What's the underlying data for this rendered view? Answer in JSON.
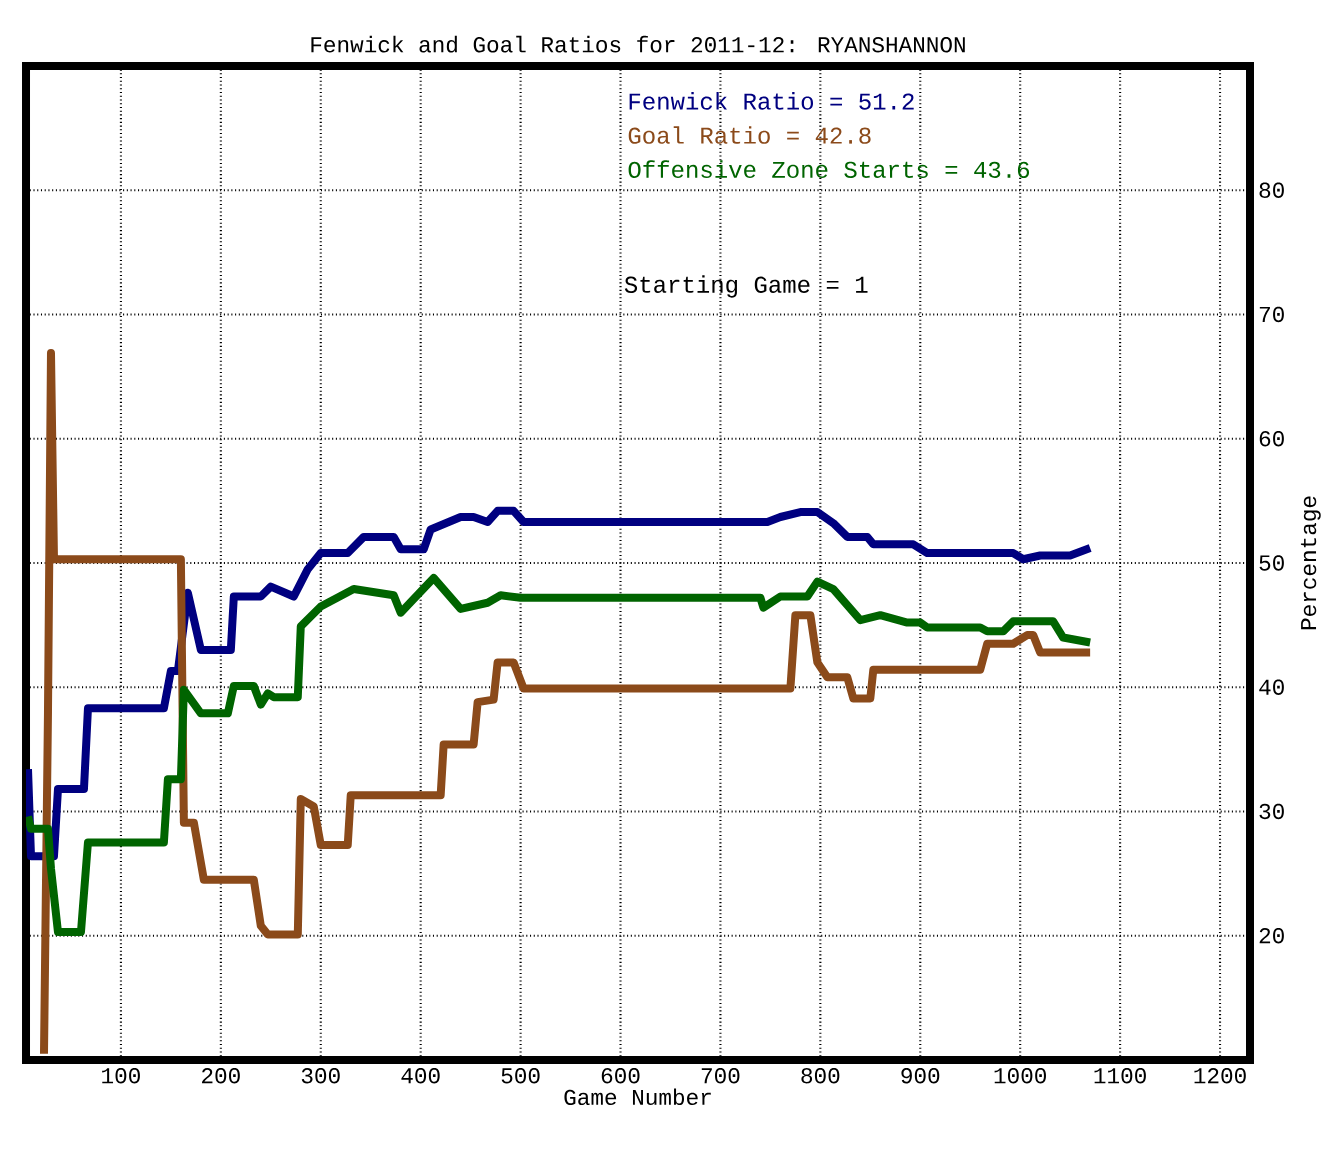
{
  "chart_data": {
    "type": "line",
    "title": "Fenwick and Goal Ratios for 2011-12: RYANSHANNON",
    "xlabel": "Game Number",
    "ylabel": "Percentage",
    "xlim": [
      5,
      1230
    ],
    "ylim": [
      10,
      90
    ],
    "xticks": [
      100,
      200,
      300,
      400,
      500,
      600,
      700,
      800,
      900,
      1000,
      1100,
      1200
    ],
    "yticks": [
      20,
      30,
      40,
      50,
      60,
      70,
      80
    ],
    "grid": true,
    "legend": "top right",
    "line_style": "solid",
    "marker": "none",
    "annotations": [
      "Starting Game = 1"
    ],
    "series": [
      {
        "name": "Fenwick Ratio = 51.2",
        "color": "#000080",
        "x": [
          7,
          10,
          33,
          37,
          63,
          67,
          143,
          150,
          157,
          167,
          180,
          210,
          213,
          240,
          250,
          273,
          287,
          300,
          327,
          343,
          373,
          380,
          403,
          410,
          440,
          453,
          467,
          477,
          493,
          503,
          747,
          760,
          780,
          797,
          813,
          827,
          847,
          853,
          893,
          907,
          993,
          1003,
          1020,
          1050,
          1070
        ],
        "values": [
          33.4,
          26.4,
          26.4,
          31.8,
          31.8,
          38.3,
          38.3,
          41.3,
          41.3,
          47.6,
          43.0,
          43.0,
          47.3,
          47.3,
          48.1,
          47.3,
          49.5,
          50.8,
          50.8,
          52.1,
          52.1,
          51.1,
          51.1,
          52.7,
          53.7,
          53.7,
          53.3,
          54.2,
          54.2,
          53.3,
          53.3,
          53.7,
          54.1,
          54.1,
          53.2,
          52.1,
          52.1,
          51.5,
          51.5,
          50.8,
          50.8,
          50.3,
          50.6,
          50.6,
          51.2
        ]
      },
      {
        "name": "Goal Ratio = 42.8",
        "color": "#8b4a1a",
        "x": [
          23,
          27,
          30,
          33,
          160,
          163,
          173,
          183,
          233,
          240,
          247,
          277,
          280,
          293,
          300,
          327,
          330,
          420,
          423,
          453,
          457,
          473,
          477,
          493,
          503,
          770,
          775,
          790,
          797,
          807,
          827,
          833,
          850,
          853,
          960,
          967,
          993,
          1007,
          1013,
          1020,
          1070
        ],
        "values": [
          10.5,
          38.0,
          66.9,
          50.3,
          50.3,
          29.1,
          29.1,
          24.5,
          24.5,
          20.8,
          20.1,
          20.1,
          31.0,
          30.4,
          27.3,
          27.3,
          31.3,
          31.3,
          35.4,
          35.4,
          38.8,
          39.0,
          42.0,
          42.0,
          39.9,
          39.9,
          45.8,
          45.8,
          42.0,
          40.8,
          40.8,
          39.1,
          39.1,
          41.4,
          41.4,
          43.5,
          43.5,
          44.2,
          44.2,
          42.8,
          42.8
        ]
      },
      {
        "name": "Offensive Zone Starts = 43.6",
        "color": "#006400",
        "x": [
          7,
          10,
          27,
          30,
          37,
          60,
          67,
          143,
          147,
          160,
          163,
          180,
          207,
          213,
          233,
          240,
          247,
          253,
          277,
          280,
          300,
          333,
          373,
          380,
          393,
          413,
          440,
          467,
          480,
          500,
          740,
          743,
          760,
          787,
          797,
          813,
          840,
          860,
          887,
          900,
          907,
          960,
          967,
          983,
          993,
          1033,
          1043,
          1070
        ],
        "values": [
          29.6,
          28.6,
          28.6,
          25.4,
          20.3,
          20.3,
          27.5,
          27.5,
          32.6,
          32.6,
          39.8,
          37.9,
          37.9,
          40.1,
          40.1,
          38.6,
          39.5,
          39.2,
          39.2,
          44.9,
          46.5,
          47.9,
          47.4,
          46.0,
          47.1,
          48.8,
          46.3,
          46.8,
          47.4,
          47.2,
          47.2,
          46.4,
          47.3,
          47.3,
          48.5,
          47.9,
          45.4,
          45.8,
          45.2,
          45.2,
          44.8,
          44.8,
          44.5,
          44.5,
          45.3,
          45.3,
          44.0,
          43.6
        ]
      }
    ]
  }
}
